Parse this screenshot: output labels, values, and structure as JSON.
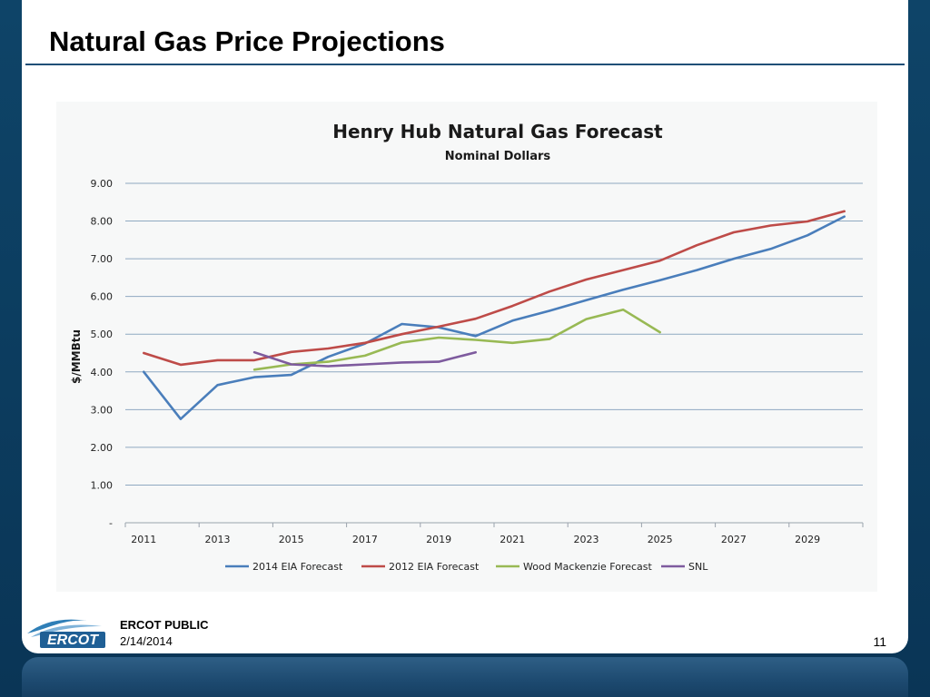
{
  "slide": {
    "title": "Natural Gas Price Projections",
    "footer_label": "ERCOT PUBLIC",
    "footer_date": "2/14/2014",
    "page_number": "11",
    "logo_text": "ERCOT"
  },
  "colors": {
    "background": "#0b3a5c",
    "title_rule": "#1f4f77",
    "series": [
      "#4a7ebb",
      "#be4b48",
      "#98b954",
      "#7e5b9e"
    ]
  },
  "chart_data": {
    "type": "line",
    "title": "Henry Hub Natural Gas Forecast",
    "subtitle": "Nominal Dollars",
    "xlabel": "",
    "ylabel": "$/MMBtu",
    "ylim": [
      0,
      9
    ],
    "yticks": [
      0,
      1,
      2,
      3,
      4,
      5,
      6,
      7,
      8,
      9
    ],
    "ytick_labels": [
      "-",
      "1.00",
      "2.00",
      "3.00",
      "4.00",
      "5.00",
      "6.00",
      "7.00",
      "8.00",
      "9.00"
    ],
    "x_tick_labels": [
      "2011",
      "2013",
      "2015",
      "2017",
      "2019",
      "2021",
      "2023",
      "2025",
      "2027",
      "2029"
    ],
    "xlim": [
      2011,
      2030
    ],
    "grid": "horizontal",
    "legend": "bottom",
    "series": [
      {
        "name": "2014 EIA Forecast",
        "x": [
          2011,
          2012,
          2013,
          2014,
          2015,
          2016,
          2017,
          2018,
          2019,
          2020,
          2021,
          2022,
          2023,
          2024,
          2025,
          2026,
          2027,
          2028,
          2029,
          2030
        ],
        "values": [
          4.0,
          2.75,
          3.65,
          3.86,
          3.92,
          4.4,
          4.75,
          5.27,
          5.18,
          4.95,
          5.36,
          5.62,
          5.9,
          6.18,
          6.43,
          6.7,
          7.0,
          7.26,
          7.62,
          8.12
        ]
      },
      {
        "name": "2012 EIA Forecast",
        "x": [
          2011,
          2012,
          2013,
          2014,
          2015,
          2016,
          2017,
          2018,
          2019,
          2020,
          2021,
          2022,
          2023,
          2024,
          2025,
          2026,
          2027,
          2028,
          2029,
          2030
        ],
        "values": [
          4.5,
          4.19,
          4.31,
          4.31,
          4.53,
          4.62,
          4.77,
          5.0,
          5.2,
          5.41,
          5.75,
          6.13,
          6.45,
          6.7,
          6.95,
          7.36,
          7.7,
          7.88,
          7.99,
          8.26
        ]
      },
      {
        "name": "Wood Mackenzie Forecast",
        "x": [
          2014,
          2015,
          2016,
          2017,
          2018,
          2019,
          2020,
          2021,
          2022,
          2023,
          2024,
          2025
        ],
        "values": [
          4.06,
          4.2,
          4.27,
          4.43,
          4.78,
          4.91,
          4.85,
          4.77,
          4.87,
          5.4,
          5.65,
          5.05
        ]
      },
      {
        "name": "SNL",
        "x": [
          2014,
          2015,
          2016,
          2017,
          2018,
          2019,
          2020
        ],
        "values": [
          4.52,
          4.2,
          4.15,
          4.2,
          4.25,
          4.27,
          4.52
        ]
      }
    ]
  }
}
